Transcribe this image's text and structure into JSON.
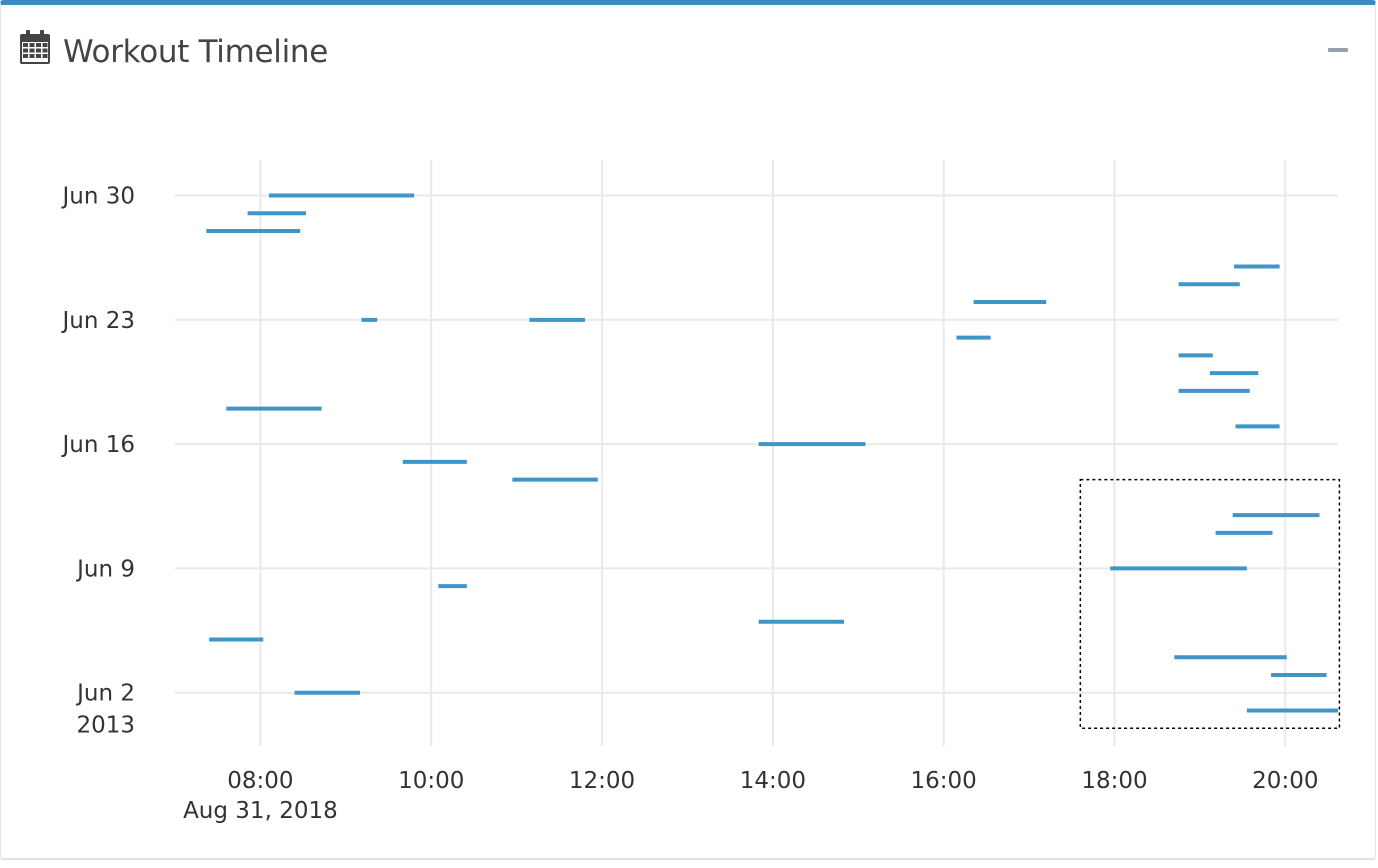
{
  "header": {
    "title": "Workout Timeline",
    "icon": "calendar-icon",
    "collapse_icon": "minus-icon"
  },
  "colors": {
    "accent": "#3c8dbc",
    "series": "#3e96c7",
    "grid": "#e9e9e9",
    "text": "#444444"
  },
  "chart_data": {
    "type": "timeline",
    "title": "",
    "xlabel": "",
    "ylabel": "",
    "x_axis": {
      "type": "time-of-day",
      "date": "Aug 31, 2018",
      "range": [
        "07:00",
        "20:37"
      ],
      "ticks": [
        "08:00",
        "10:00",
        "12:00",
        "14:00",
        "16:00",
        "18:00",
        "20:00"
      ]
    },
    "y_axis": {
      "type": "date",
      "year": "2013",
      "range": [
        "2013-05-30",
        "2013-07-02"
      ],
      "ticks": [
        "Jun 2",
        "Jun 9",
        "Jun 16",
        "Jun 23",
        "Jun 30"
      ]
    },
    "grid": true,
    "selection_box": {
      "x": [
        "17:36",
        "20:38"
      ],
      "y": [
        "2013-05-31",
        "2013-06-14"
      ]
    },
    "workouts": [
      {
        "date": "2013-06-30",
        "start": "08:06",
        "end": "09:48"
      },
      {
        "date": "2013-06-29",
        "start": "07:51",
        "end": "08:32"
      },
      {
        "date": "2013-06-28",
        "start": "07:22",
        "end": "08:28"
      },
      {
        "date": "2013-06-26",
        "start": "19:24",
        "end": "19:56"
      },
      {
        "date": "2013-06-25",
        "start": "18:45",
        "end": "19:28"
      },
      {
        "date": "2013-06-24",
        "start": "16:21",
        "end": "17:12"
      },
      {
        "date": "2013-06-23",
        "start": "09:11",
        "end": "09:22"
      },
      {
        "date": "2013-06-23",
        "start": "11:09",
        "end": "11:48"
      },
      {
        "date": "2013-06-22",
        "start": "16:09",
        "end": "16:33"
      },
      {
        "date": "2013-06-21",
        "start": "18:45",
        "end": "19:09"
      },
      {
        "date": "2013-06-20",
        "start": "19:07",
        "end": "19:41"
      },
      {
        "date": "2013-06-19",
        "start": "18:45",
        "end": "19:35"
      },
      {
        "date": "2013-06-18",
        "start": "07:36",
        "end": "08:43"
      },
      {
        "date": "2013-06-17",
        "start": "19:25",
        "end": "19:56"
      },
      {
        "date": "2013-06-16",
        "start": "13:50",
        "end": "15:05"
      },
      {
        "date": "2013-06-15",
        "start": "09:40",
        "end": "10:25"
      },
      {
        "date": "2013-06-14",
        "start": "10:57",
        "end": "11:57"
      },
      {
        "date": "2013-06-12",
        "start": "19:23",
        "end": "20:24"
      },
      {
        "date": "2013-06-11",
        "start": "19:11",
        "end": "19:51"
      },
      {
        "date": "2013-06-09",
        "start": "17:57",
        "end": "19:33"
      },
      {
        "date": "2013-06-08",
        "start": "10:05",
        "end": "10:25"
      },
      {
        "date": "2013-06-06",
        "start": "13:50",
        "end": "14:50"
      },
      {
        "date": "2013-06-05",
        "start": "07:24",
        "end": "08:02"
      },
      {
        "date": "2013-06-04",
        "start": "18:42",
        "end": "20:01"
      },
      {
        "date": "2013-06-03",
        "start": "19:50",
        "end": "20:29"
      },
      {
        "date": "2013-06-02",
        "start": "08:24",
        "end": "09:10"
      },
      {
        "date": "2013-06-01",
        "start": "19:33",
        "end": "20:38"
      }
    ]
  }
}
